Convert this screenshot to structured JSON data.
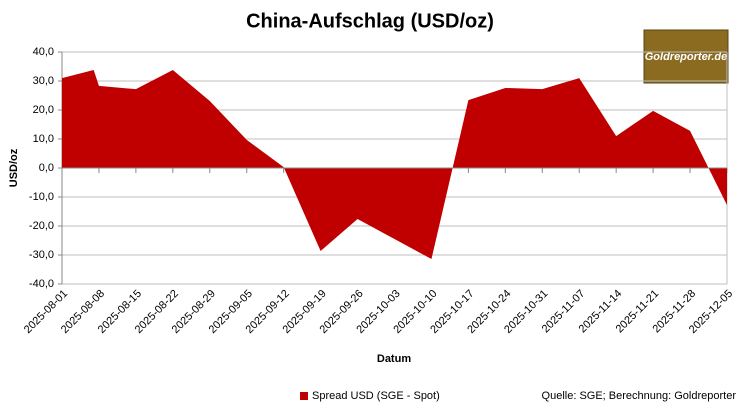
{
  "chart_data": {
    "type": "area",
    "title": "China-Aufschlag (USD/oz)",
    "xlabel": "Datum",
    "ylabel": "USD/oz",
    "logo": "Goldreporter.de",
    "source": "Quelle: SGE; Berechnung: Goldreporter",
    "x": [
      "2025-08-01",
      "2025-08-07",
      "2025-08-08",
      "2025-08-15",
      "2025-08-22",
      "2025-08-29",
      "2025-09-05",
      "2025-09-12",
      "2025-09-19",
      "2025-09-26",
      "2025-10-03",
      "2025-10-10",
      "2025-10-17",
      "2025-10-24",
      "2025-10-31",
      "2025-11-07",
      "2025-11-14",
      "2025-11-21",
      "2025-11-28",
      "2025-12-05"
    ],
    "series": [
      {
        "name": "Spread USD (SGE - Spot)",
        "color": "#c00000",
        "values": [
          31.0,
          33.8,
          28.3,
          27.2,
          33.8,
          23.1,
          9.7,
          0.3,
          -28.6,
          -17.6,
          -24.5,
          -31.4,
          23.4,
          27.6,
          27.2,
          31.0,
          11.0,
          19.7,
          12.8,
          -12.8
        ]
      }
    ],
    "xlim": [
      "2025-08-01",
      "2025-12-05"
    ],
    "xticks": [
      "2025-08-01",
      "2025-08-08",
      "2025-08-15",
      "2025-08-22",
      "2025-08-29",
      "2025-09-05",
      "2025-09-12",
      "2025-09-19",
      "2025-09-26",
      "2025-10-03",
      "2025-10-10",
      "2025-10-17",
      "2025-10-24",
      "2025-10-31",
      "2025-11-07",
      "2025-11-14",
      "2025-11-21",
      "2025-11-28",
      "2025-12-05"
    ],
    "ylim": [
      -40,
      40
    ],
    "yticks": [
      {
        "value": -40,
        "label": "-40,0"
      },
      {
        "value": -30,
        "label": "-30,0"
      },
      {
        "value": -20,
        "label": "-20,0"
      },
      {
        "value": -10,
        "label": "-10,0"
      },
      {
        "value": 0,
        "label": "0,0"
      },
      {
        "value": 10,
        "label": "10,0"
      },
      {
        "value": 20,
        "label": "20,0"
      },
      {
        "value": 30,
        "label": "30,0"
      },
      {
        "value": 40,
        "label": "40,0"
      }
    ],
    "grid": true
  }
}
